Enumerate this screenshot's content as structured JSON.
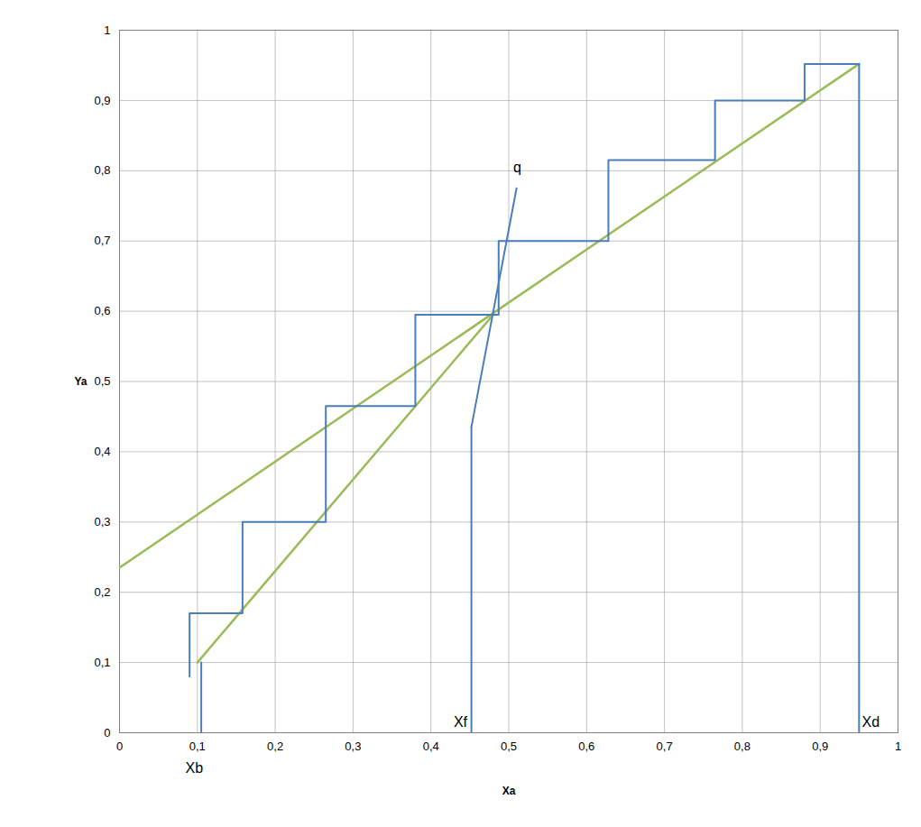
{
  "chart_data": {
    "type": "line",
    "x_label": "Xa",
    "y_label": "Ya",
    "xlim": [
      0,
      1
    ],
    "ylim": [
      0,
      1
    ],
    "xticks": [
      0,
      {
        "value": 0.1,
        "label": "0,1"
      },
      {
        "value": 0.2,
        "label": "0,2"
      },
      {
        "value": 0.3,
        "label": "0,3"
      },
      {
        "value": 0.4,
        "label": "0,4"
      },
      {
        "value": 0.5,
        "label": "0,5"
      },
      {
        "value": 0.6,
        "label": "0,6"
      },
      {
        "value": 0.7,
        "label": "0,7"
      },
      {
        "value": 0.8,
        "label": "0,8"
      },
      {
        "value": 0.9,
        "label": "0,9"
      },
      1
    ],
    "yticks": [
      0,
      {
        "value": 0.1,
        "label": "0,1"
      },
      {
        "value": 0.2,
        "label": "0,2"
      },
      {
        "value": 0.3,
        "label": "0,3"
      },
      {
        "value": 0.4,
        "label": "0,4"
      },
      {
        "value": 0.5,
        "label": "0,5"
      },
      {
        "value": 0.6,
        "label": "0,6"
      },
      {
        "value": 0.7,
        "label": "0,7"
      },
      {
        "value": 0.8,
        "label": "0,8"
      },
      {
        "value": 0.9,
        "label": "0,9"
      },
      1
    ],
    "grid": true,
    "series": [
      {
        "color": "#9bbb59",
        "points": [
          [
            0,
            0.235
          ],
          [
            0.95,
            0.952
          ]
        ]
      },
      {
        "color": "#9bbb59",
        "points": [
          [
            0.1,
            0.1
          ],
          [
            0.48,
            0.595
          ]
        ]
      },
      {
        "color": "#4a7ebb",
        "points": [
          [
            0.95,
            0.952
          ],
          [
            0.88,
            0.952
          ],
          [
            0.88,
            0.9
          ],
          [
            0.765,
            0.9
          ],
          [
            0.765,
            0.815
          ],
          [
            0.628,
            0.815
          ],
          [
            0.628,
            0.7
          ],
          [
            0.487,
            0.7
          ],
          [
            0.487,
            0.595
          ],
          [
            0.38,
            0.595
          ],
          [
            0.38,
            0.465
          ],
          [
            0.265,
            0.465
          ],
          [
            0.265,
            0.3
          ],
          [
            0.158,
            0.3
          ],
          [
            0.158,
            0.17
          ],
          [
            0.09,
            0.17
          ],
          [
            0.09,
            0.08
          ]
        ]
      },
      {
        "color": "#4a7ebb",
        "points": [
          [
            0.452,
            0.435
          ],
          [
            0.51,
            0.775
          ]
        ]
      },
      {
        "color": "#4a7ebb",
        "points": [
          [
            0.452,
            0
          ],
          [
            0.452,
            0.435
          ]
        ]
      },
      {
        "color": "#4a7ebb",
        "points": [
          [
            0.95,
            0
          ],
          [
            0.95,
            0.952
          ]
        ]
      },
      {
        "color": "#4a7ebb",
        "points": [
          [
            0.105,
            0
          ],
          [
            0.105,
            0.1
          ]
        ]
      }
    ],
    "annotations": [
      {
        "text": "q",
        "x": 0.511,
        "y": 0.805
      },
      {
        "text": "Xf",
        "x": 0.438,
        "y": 0.015
      },
      {
        "text": "Xd",
        "x": 0.965,
        "y": 0.015
      },
      {
        "text": "Xb",
        "x": 0.096,
        "y": -0.05
      }
    ]
  }
}
